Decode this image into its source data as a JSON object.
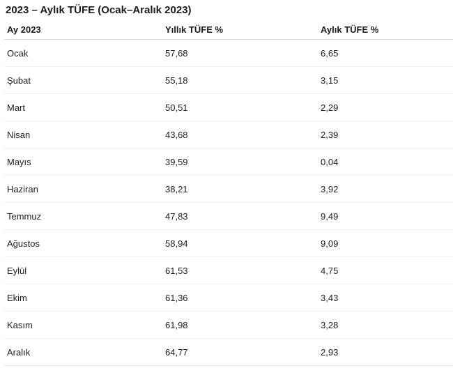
{
  "chart_data": {
    "type": "table",
    "title": "2023 – Aylık TÜFE (Ocak–Aralık 2023)",
    "columns": [
      "Ay 2023",
      "Yıllık TÜFE %",
      "Aylık TÜFE %"
    ],
    "rows": [
      [
        "Ocak",
        "57,68",
        "6,65"
      ],
      [
        "Şubat",
        "55,18",
        "3,15"
      ],
      [
        "Mart",
        "50,51",
        "2,29"
      ],
      [
        "Nisan",
        "43,68",
        "2,39"
      ],
      [
        "Mayıs",
        "39,59",
        "0,04"
      ],
      [
        "Haziran",
        "38,21",
        "3,92"
      ],
      [
        "Temmuz",
        "47,83",
        "9,49"
      ],
      [
        "Ağustos",
        "58,94",
        "9,09"
      ],
      [
        "Eylül",
        "61,53",
        "4,75"
      ],
      [
        "Ekim",
        "61,36",
        "3,43"
      ],
      [
        "Kasım",
        "61,98",
        "3,28"
      ],
      [
        "Aralık",
        "64,77",
        "2,93"
      ]
    ],
    "numeric": {
      "months": [
        "Ocak",
        "Şubat",
        "Mart",
        "Nisan",
        "Mayıs",
        "Haziran",
        "Temmuz",
        "Ağustos",
        "Eylül",
        "Ekim",
        "Kasım",
        "Aralık"
      ],
      "yillik_tufe_pct": [
        57.68,
        55.18,
        50.51,
        43.68,
        39.59,
        38.21,
        47.83,
        58.94,
        61.53,
        61.36,
        61.98,
        64.77
      ],
      "aylik_tufe_pct": [
        6.65,
        3.15,
        2.29,
        2.39,
        0.04,
        3.92,
        9.49,
        9.09,
        4.75,
        3.43,
        3.28,
        2.93
      ]
    },
    "layout_hints": {
      "legend": "none",
      "grid": "horizontal-row-dividers-only",
      "decimal_separator": ","
    }
  },
  "colors": {
    "background": "#ffffff",
    "text": "#1b1b1b",
    "header_divider": "#d9d9d9",
    "row_divider": "#f1f1f1",
    "bottom_divider": "#e4e4e4"
  }
}
